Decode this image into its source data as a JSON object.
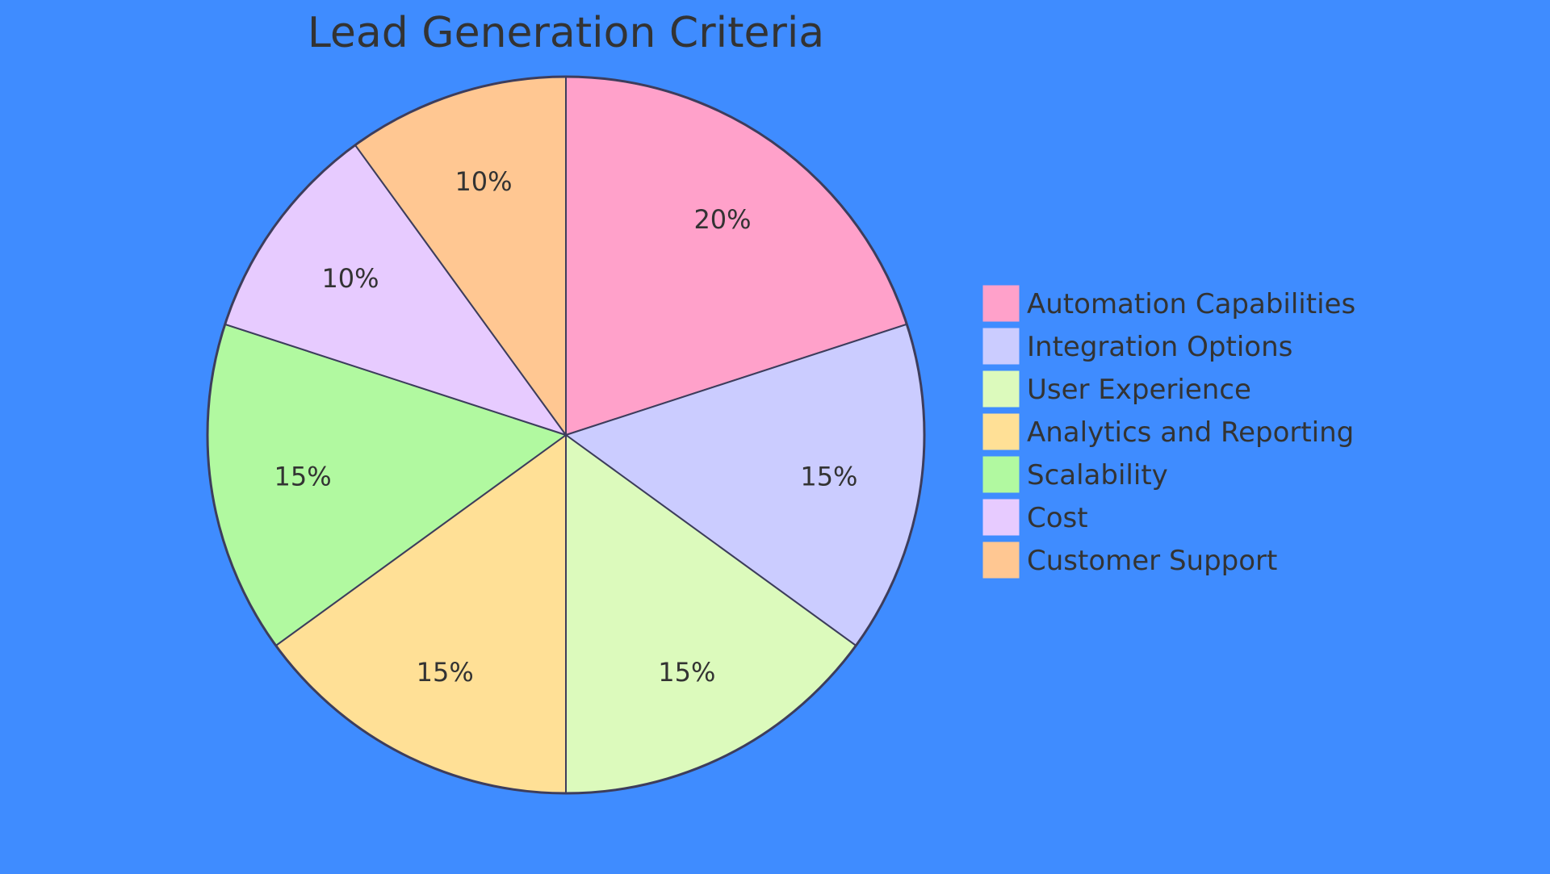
{
  "chart_data": {
    "type": "pie",
    "title": "Lead Generation Criteria",
    "slices": [
      {
        "label": "Automation Capabilities",
        "value": 20,
        "display": "20%",
        "color": "#ffa1ca"
      },
      {
        "label": "Integration Options",
        "value": 15,
        "display": "15%",
        "color": "#cbccff"
      },
      {
        "label": "User Experience",
        "value": 15,
        "display": "15%",
        "color": "#dcfabc"
      },
      {
        "label": "Analytics and Reporting",
        "value": 15,
        "display": "15%",
        "color": "#ffe096"
      },
      {
        "label": "Scalability",
        "value": 15,
        "display": "15%",
        "color": "#b1f9a0"
      },
      {
        "label": "Cost",
        "value": 10,
        "display": "10%",
        "color": "#e7cbff"
      },
      {
        "label": "Customer Support",
        "value": 10,
        "display": "10%",
        "color": "#ffc792"
      }
    ],
    "legend_position": "right"
  },
  "colors": {
    "background": "#3f8cff",
    "stroke": "#3d3d5c",
    "text": "#333333"
  }
}
